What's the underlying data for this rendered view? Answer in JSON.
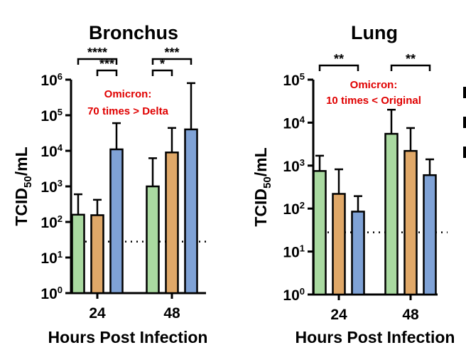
{
  "colors": {
    "original": "#A9D9A0",
    "delta": "#E0A868",
    "omicron": "#7FA2D6",
    "annotation": "#E00000",
    "axis": "#000000"
  },
  "chart_data": [
    {
      "type": "bar",
      "title": "Bronchus",
      "ylabel": "TCID50/mL",
      "xlabel": "Hours Post Infection",
      "yscale": "log",
      "ylim": [
        1,
        1000000
      ],
      "y_tick_exponents": [
        0,
        1,
        2,
        3,
        4,
        5,
        6
      ],
      "categories": [
        "24",
        "48"
      ],
      "series": [
        {
          "color_key": "original",
          "values": [
            160,
            1000
          ],
          "error_upper": [
            600,
            6200
          ]
        },
        {
          "color_key": "delta",
          "values": [
            155,
            9000
          ],
          "error_upper": [
            420,
            44000
          ]
        },
        {
          "color_key": "omicron",
          "values": [
            11000,
            40000
          ],
          "error_upper": [
            60000,
            800000
          ]
        }
      ],
      "detection_limit": 28,
      "annotation": {
        "line1": "Omicron:",
        "line2": "70 times > Delta"
      },
      "significance": [
        {
          "category": 0,
          "from_series": 0,
          "to_series": 2,
          "label": "****",
          "level": 0
        },
        {
          "category": 0,
          "from_series": 1,
          "to_series": 2,
          "label": "***",
          "level": 1
        },
        {
          "category": 1,
          "from_series": 0,
          "to_series": 2,
          "label": "***",
          "level": 0
        },
        {
          "category": 1,
          "from_series": 0,
          "to_series": 1,
          "label": "*",
          "level": 1
        }
      ]
    },
    {
      "type": "bar",
      "title": "Lung",
      "ylabel": "TCID50/mL",
      "xlabel": "Hours Post Infection",
      "yscale": "log",
      "ylim": [
        1,
        100000
      ],
      "y_tick_exponents": [
        0,
        1,
        2,
        3,
        4,
        5
      ],
      "categories": [
        "24",
        "48"
      ],
      "series": [
        {
          "color_key": "original",
          "values": [
            750,
            5500
          ],
          "error_upper": [
            1700,
            20000
          ]
        },
        {
          "color_key": "delta",
          "values": [
            220,
            2200
          ],
          "error_upper": [
            820,
            7500
          ]
        },
        {
          "color_key": "omicron",
          "values": [
            85,
            600
          ],
          "error_upper": [
            195,
            1400
          ]
        }
      ],
      "detection_limit": 28,
      "annotation": {
        "line1": "Omicron:",
        "line2": "10 times < Original"
      },
      "significance": [
        {
          "category": 0,
          "from_series": 0,
          "to_series": 2,
          "label": "**",
          "level": 0
        },
        {
          "category": 1,
          "from_series": 0,
          "to_series": 2,
          "label": "**",
          "level": 0
        }
      ]
    }
  ]
}
